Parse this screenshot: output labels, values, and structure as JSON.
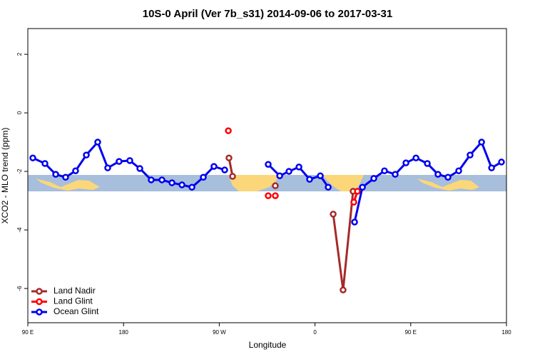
{
  "chart_data": {
    "type": "line",
    "title": "10S-0 April (Ver 7b_s31)   2014-09-06 to 2017-03-31",
    "x_label": "Longitude",
    "y_label": "XCO2 - MLO trend (ppm)",
    "xlim": [
      90,
      540
    ],
    "ylim": [
      -7.17,
      2.88
    ],
    "xticks": [
      {
        "value": 90,
        "label": "90 E"
      },
      180,
      {
        "value": 270,
        "label": "90 W"
      },
      {
        "value": 360,
        "label": "0"
      },
      {
        "value": 450,
        "label": "90 E"
      },
      {
        "value": 540,
        "label": "180"
      }
    ],
    "yticks": [
      -6,
      -4,
      -2,
      0,
      2
    ],
    "legend": "bottom-left",
    "series": [
      {
        "name": "Land Nadir",
        "color": "#a52a2a",
        "x": [
          279.1,
          282.5,
          null,
          322.7,
          null,
          377.1,
          386.4,
          395.8
        ],
        "values": [
          -1.54,
          -2.17,
          null,
          -2.49,
          null,
          -3.46,
          -6.05,
          -2.68
        ]
      },
      {
        "name": "Land Glint",
        "color": "#ff0000",
        "x": [
          278.5,
          null,
          316.0,
          null,
          322.7,
          null,
          396.5,
          399.9
        ],
        "values": [
          -0.61,
          null,
          -2.83,
          null,
          -2.83,
          null,
          -3.05,
          -2.68
        ]
      },
      {
        "name": "Ocean Glint",
        "color": "#0000ee",
        "x": [
          94.7,
          106.1,
          116.2,
          125.5,
          134.9,
          145.0,
          155.7,
          165.1,
          175.8,
          185.9,
          195.3,
          206.0,
          216.1,
          225.5,
          234.9,
          244.3,
          255.0,
          265.0,
          275.1,
          null,
          316.0,
          326.8,
          335.5,
          344.9,
          354.9,
          365.0,
          372.4,
          null,
          397.2,
          404.6,
          415.3,
          425.3,
          435.4,
          445.5,
          454.9,
          465.6,
          475.6,
          485.0,
          495.1,
          505.8,
          516.6,
          526.0,
          535.3
        ],
        "values": [
          -1.54,
          -1.73,
          -2.1,
          -2.2,
          -1.98,
          -1.44,
          -1.0,
          -1.88,
          -1.66,
          -1.63,
          -1.9,
          -2.29,
          -2.29,
          -2.39,
          -2.46,
          -2.54,
          -2.2,
          -1.83,
          -1.95,
          null,
          -1.76,
          -2.15,
          -2.0,
          -1.85,
          -2.27,
          -2.15,
          -2.54,
          null,
          -3.73,
          -2.54,
          -2.24,
          -1.98,
          -2.1,
          -1.71,
          -1.54,
          -1.73,
          -2.1,
          -2.2,
          -1.98,
          -1.44,
          -1.0,
          -1.88,
          -1.68
        ]
      }
    ]
  }
}
